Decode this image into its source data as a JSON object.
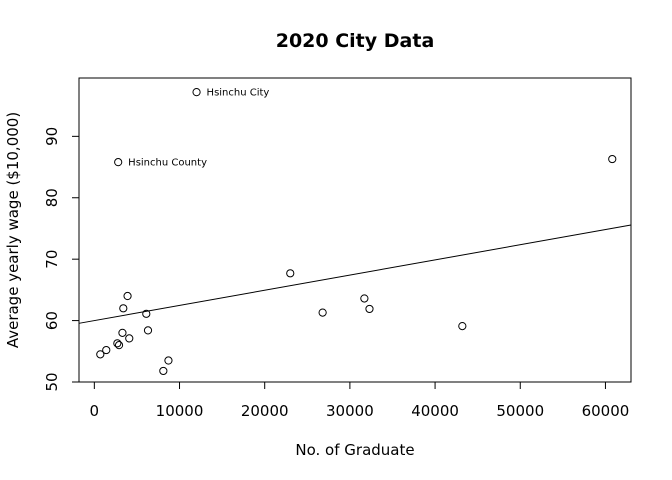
{
  "chart_data": {
    "type": "scatter",
    "title": "2020 City Data",
    "xlabel": "No. of Graduate",
    "ylabel": "Average yearly wage ($10,000)",
    "xlim": [
      -1800,
      63000
    ],
    "ylim": [
      50,
      99.5
    ],
    "x_ticks": [
      0,
      10000,
      20000,
      30000,
      40000,
      50000,
      60000
    ],
    "x_tick_labels": [
      "0",
      "10000",
      "20000",
      "30000",
      "40000",
      "50000",
      "60000"
    ],
    "y_ticks": [
      50,
      60,
      70,
      80,
      90
    ],
    "y_tick_labels": [
      "50",
      "60",
      "70",
      "80",
      "90"
    ],
    "grid": false,
    "points": [
      {
        "x": 12000,
        "y": 97.2,
        "label": "Hsinchu City"
      },
      {
        "x": 2800,
        "y": 85.8,
        "label": "Hsinchu County"
      },
      {
        "x": 60800,
        "y": 86.3
      },
      {
        "x": 23000,
        "y": 67.7
      },
      {
        "x": 26800,
        "y": 61.3
      },
      {
        "x": 31700,
        "y": 63.6
      },
      {
        "x": 32300,
        "y": 61.9
      },
      {
        "x": 43200,
        "y": 59.1
      },
      {
        "x": 3900,
        "y": 64.0
      },
      {
        "x": 3400,
        "y": 62.0
      },
      {
        "x": 6100,
        "y": 61.1
      },
      {
        "x": 3300,
        "y": 58.0
      },
      {
        "x": 6300,
        "y": 58.4
      },
      {
        "x": 4100,
        "y": 57.1
      },
      {
        "x": 2700,
        "y": 56.3
      },
      {
        "x": 2900,
        "y": 56.0
      },
      {
        "x": 1400,
        "y": 55.2
      },
      {
        "x": 700,
        "y": 54.5
      },
      {
        "x": 8700,
        "y": 53.5
      },
      {
        "x": 8100,
        "y": 51.8
      }
    ],
    "regression_line": {
      "intercept": 60.0,
      "slope": 0.000247
    }
  }
}
